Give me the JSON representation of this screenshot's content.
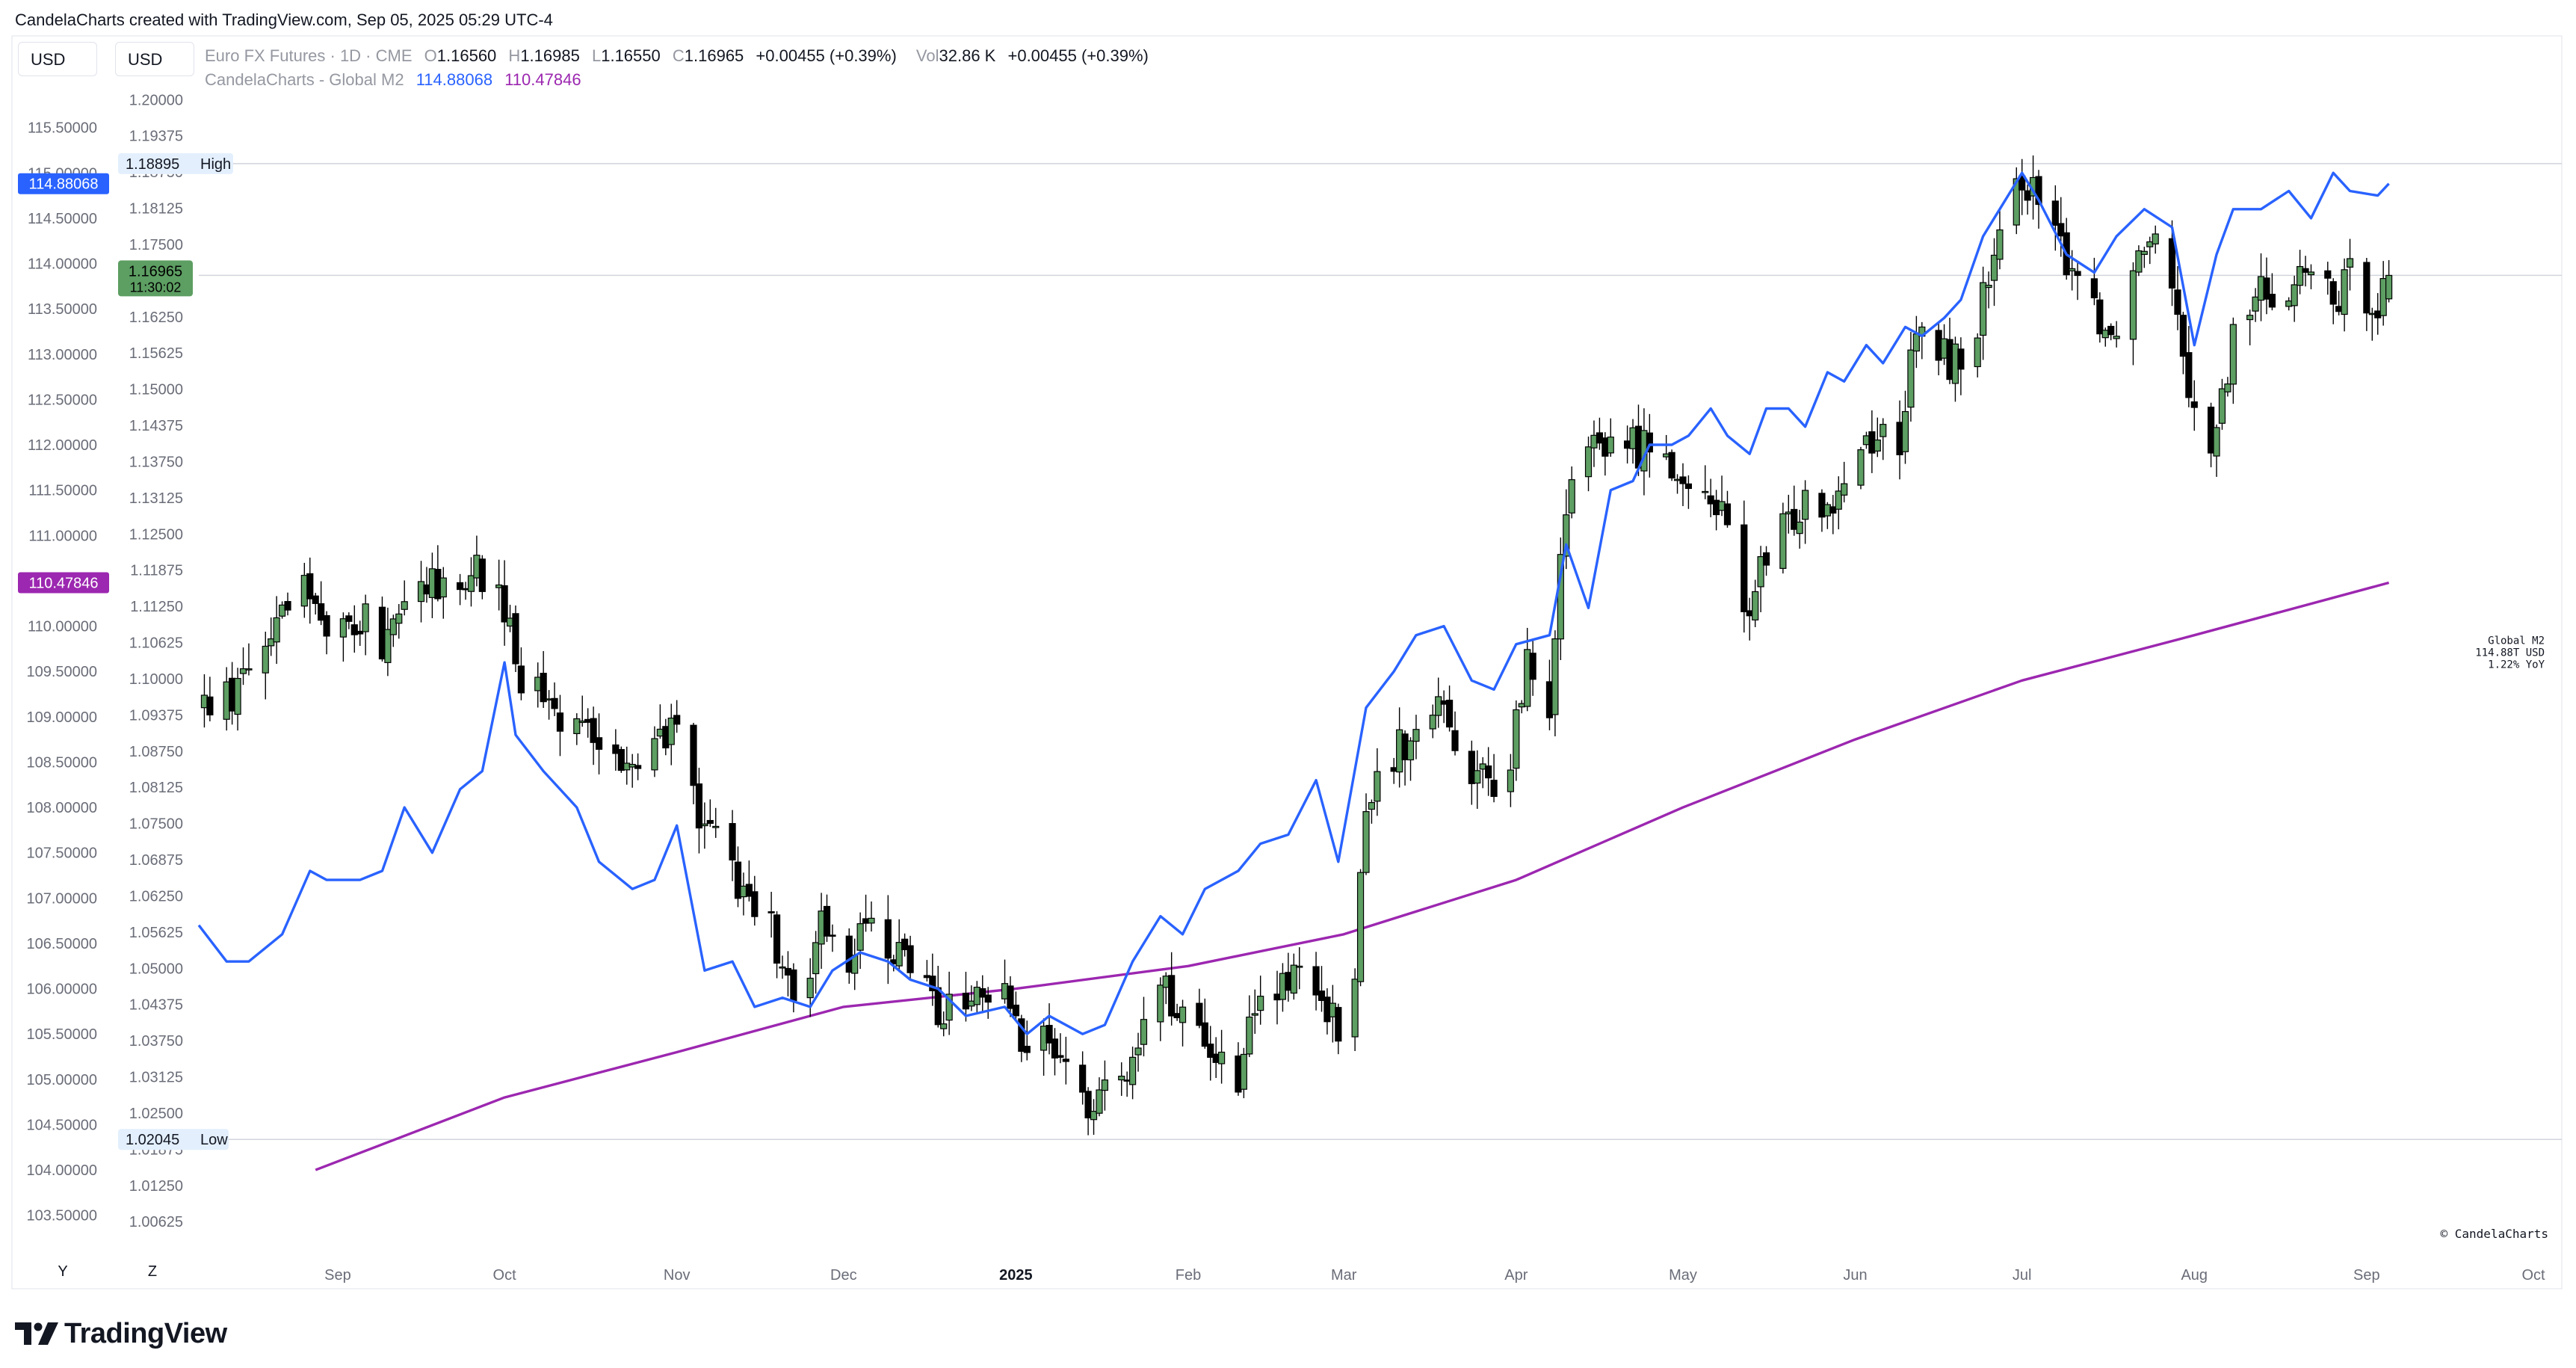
{
  "header": {
    "created_text": "CandelaCharts created with TradingView.com, Sep 05, 2025 05:29 UTC-4"
  },
  "scale_buttons": {
    "left": "USD",
    "right": "USD"
  },
  "legend": {
    "symbol": "Euro FX Futures · 1D · CME",
    "o_label": "O",
    "o_value": "1.16560",
    "h_label": "H",
    "h_value": "1.16985",
    "l_label": "L",
    "l_value": "1.16550",
    "c_label": "C",
    "c_value": "1.16965",
    "change": "+0.00455 (+0.39%)",
    "vol_label": "Vol",
    "vol_value": "32.86 K",
    "vol_change": "+0.00455 (+0.39%)",
    "indicator": "CandelaCharts - Global M2",
    "ind_value_1": "114.88068",
    "ind_value_2": "110.47846"
  },
  "labels": {
    "high_price": "1.18895",
    "high_text": "High",
    "low_price": "1.02045",
    "low_text": "Low",
    "last_price": "1.16965",
    "countdown": "11:30:02",
    "m2_left_badge": "114.88068",
    "yoy_left_badge": "110.47846",
    "info_line1": "Global M2",
    "info_line2": "114.88T USD",
    "info_line3": "1.22% YoY",
    "copyright": "© CandelaCharts"
  },
  "range_buttons": [
    "Y",
    "Z"
  ],
  "brand": "TradingView",
  "colors": {
    "up": "#5d9e62",
    "down": "#000000",
    "m2_line": "#2962ff",
    "yoy_line": "#9c27b0",
    "price_badge": "#5d9e62"
  },
  "chart_data": {
    "type": "candlestick",
    "title": "Euro FX Futures · 1D · CME",
    "x_range": [
      "2024-08-07",
      "2025-10-01"
    ],
    "x_ticks": [
      "Sep",
      "Oct",
      "Nov",
      "Dec",
      "2025",
      "Feb",
      "Mar",
      "Apr",
      "May",
      "Jun",
      "Jul",
      "Aug",
      "Sep",
      "Oct"
    ],
    "left_axis": {
      "unit": "USD",
      "range": [
        103.3,
        116.0
      ],
      "ticks": [
        "103.50000",
        "104.00000",
        "104.50000",
        "105.00000",
        "105.50000",
        "106.00000",
        "106.50000",
        "107.00000",
        "107.50000",
        "108.00000",
        "108.50000",
        "109.00000",
        "109.50000",
        "110.00000",
        "110.50000",
        "111.00000",
        "111.50000",
        "112.00000",
        "112.50000",
        "113.00000",
        "113.50000",
        "114.00000",
        "114.50000",
        "115.00000",
        "115.50000"
      ]
    },
    "right_axis": {
      "unit": "USD",
      "range": [
        1.00421,
        1.20301
      ],
      "ticks": [
        "1.00625",
        "1.01250",
        "1.01875",
        "1.02500",
        "1.03125",
        "1.03750",
        "1.04375",
        "1.05000",
        "1.05625",
        "1.06250",
        "1.06875",
        "1.07500",
        "1.08125",
        "1.08750",
        "1.09375",
        "1.10000",
        "1.10625",
        "1.11250",
        "1.11875",
        "1.12500",
        "1.13125",
        "1.13750",
        "1.14375",
        "1.15000",
        "1.15625",
        "1.16250",
        "1.16875",
        "1.17500",
        "1.18125",
        "1.18750",
        "1.19375",
        "1.20000"
      ]
    },
    "ohlc_anchors": [
      [
        "2024-08-08",
        1.0955
      ],
      [
        "2024-08-15",
        1.0992
      ],
      [
        "2024-08-22",
        1.1145
      ],
      [
        "2024-08-26",
        1.1185
      ],
      [
        "2024-08-30",
        1.108
      ],
      [
        "2024-09-05",
        1.11
      ],
      [
        "2024-09-10",
        1.106
      ],
      [
        "2024-09-17",
        1.115
      ],
      [
        "2024-09-25",
        1.1195
      ],
      [
        "2024-09-30",
        1.116
      ],
      [
        "2024-10-04",
        1.1
      ],
      [
        "2024-10-10",
        1.095
      ],
      [
        "2024-10-16",
        1.0895
      ],
      [
        "2024-10-21",
        1.0855
      ],
      [
        "2024-10-25",
        1.0855
      ],
      [
        "2024-10-30",
        1.0885
      ],
      [
        "2024-11-01",
        1.0905
      ],
      [
        "2024-11-06",
        1.074
      ],
      [
        "2024-11-12",
        1.065
      ],
      [
        "2024-11-18",
        1.0585
      ],
      [
        "2024-11-22",
        1.043
      ],
      [
        "2024-11-27",
        1.0565
      ],
      [
        "2024-12-03",
        1.052
      ],
      [
        "2024-12-06",
        1.058
      ],
      [
        "2024-12-10",
        1.0545
      ],
      [
        "2024-12-13",
        1.05
      ],
      [
        "2024-12-18",
        1.0425
      ],
      [
        "2024-12-24",
        1.043
      ],
      [
        "2024-12-30",
        1.044
      ],
      [
        "2025-01-03",
        1.033
      ],
      [
        "2025-01-07",
        1.038
      ],
      [
        "2025-01-13",
        1.026
      ],
      [
        "2025-01-17",
        1.0315
      ],
      [
        "2025-01-22",
        1.033
      ],
      [
        "2025-01-27",
        1.05
      ],
      [
        "2025-01-31",
        1.04
      ],
      [
        "2025-02-04",
        1.037
      ],
      [
        "2025-02-10",
        1.032
      ],
      [
        "2025-02-14",
        1.047
      ],
      [
        "2025-02-19",
        1.048
      ],
      [
        "2025-02-24",
        1.048
      ],
      [
        "2025-02-28",
        1.039
      ],
      [
        "2025-03-03",
        1.05
      ],
      [
        "2025-03-05",
        1.08
      ],
      [
        "2025-03-10",
        1.087
      ],
      [
        "2025-03-14",
        1.091
      ],
      [
        "2025-03-18",
        1.096
      ],
      [
        "2025-03-21",
        1.0845
      ],
      [
        "2025-03-27",
        1.082
      ],
      [
        "2025-03-31",
        1.084
      ],
      [
        "2025-04-03",
        1.105
      ],
      [
        "2025-04-07",
        1.096
      ],
      [
        "2025-04-10",
        1.13
      ],
      [
        "2025-04-14",
        1.138
      ],
      [
        "2025-04-18",
        1.142
      ],
      [
        "2025-04-23",
        1.14
      ],
      [
        "2025-04-28",
        1.142
      ],
      [
        "2025-05-01",
        1.13
      ],
      [
        "2025-05-06",
        1.133
      ],
      [
        "2025-05-09",
        1.125
      ],
      [
        "2025-05-12",
        1.11
      ],
      [
        "2025-05-15",
        1.118
      ],
      [
        "2025-05-19",
        1.125
      ],
      [
        "2025-05-23",
        1.132
      ],
      [
        "2025-05-27",
        1.131
      ],
      [
        "2025-05-30",
        1.135
      ],
      [
        "2025-06-03",
        1.142
      ],
      [
        "2025-06-09",
        1.142
      ],
      [
        "2025-06-12",
        1.159
      ],
      [
        "2025-06-17",
        1.156
      ],
      [
        "2025-06-20",
        1.154
      ],
      [
        "2025-06-25",
        1.168
      ],
      [
        "2025-06-30",
        1.183
      ],
      [
        "2025-07-01",
        1.188
      ],
      [
        "2025-07-07",
        1.175
      ],
      [
        "2025-07-10",
        1.172
      ],
      [
        "2025-07-15",
        1.163
      ],
      [
        "2025-07-17",
        1.159
      ],
      [
        "2025-07-22",
        1.174
      ],
      [
        "2025-07-25",
        1.18
      ],
      [
        "2025-07-29",
        1.165
      ],
      [
        "2025-08-01",
        1.145
      ],
      [
        "2025-08-05",
        1.141
      ],
      [
        "2025-08-08",
        1.159
      ],
      [
        "2025-08-13",
        1.167
      ],
      [
        "2025-08-18",
        1.168
      ],
      [
        "2025-08-22",
        1.17
      ],
      [
        "2025-08-26",
        1.164
      ],
      [
        "2025-08-29",
        1.169
      ],
      [
        "2025-09-03",
        1.1655
      ],
      [
        "2025-09-05",
        1.1697
      ]
    ],
    "series": [
      {
        "name": "Global M2",
        "axis": "left",
        "points": [
          [
            "2024-08-07",
            106.7
          ],
          [
            "2024-08-12",
            106.3
          ],
          [
            "2024-08-16",
            106.3
          ],
          [
            "2024-08-22",
            106.6
          ],
          [
            "2024-08-27",
            107.3
          ],
          [
            "2024-08-30",
            107.2
          ],
          [
            "2024-09-05",
            107.2
          ],
          [
            "2024-09-09",
            107.3
          ],
          [
            "2024-09-13",
            108.0
          ],
          [
            "2024-09-18",
            107.5
          ],
          [
            "2024-09-23",
            108.2
          ],
          [
            "2024-09-27",
            108.4
          ],
          [
            "2024-10-01",
            109.6
          ],
          [
            "2024-10-03",
            108.8
          ],
          [
            "2024-10-08",
            108.4
          ],
          [
            "2024-10-14",
            108.0
          ],
          [
            "2024-10-18",
            107.4
          ],
          [
            "2024-10-24",
            107.1
          ],
          [
            "2024-10-28",
            107.2
          ],
          [
            "2024-11-01",
            107.8
          ],
          [
            "2024-11-06",
            106.2
          ],
          [
            "2024-11-11",
            106.3
          ],
          [
            "2024-11-15",
            105.8
          ],
          [
            "2024-11-20",
            105.9
          ],
          [
            "2024-11-25",
            105.8
          ],
          [
            "2024-11-29",
            106.2
          ],
          [
            "2024-12-04",
            106.4
          ],
          [
            "2024-12-09",
            106.3
          ],
          [
            "2024-12-13",
            106.1
          ],
          [
            "2024-12-18",
            106.0
          ],
          [
            "2024-12-23",
            105.7
          ],
          [
            "2024-12-30",
            105.8
          ],
          [
            "2025-01-03",
            105.5
          ],
          [
            "2025-01-07",
            105.7
          ],
          [
            "2025-01-13",
            105.5
          ],
          [
            "2025-01-17",
            105.6
          ],
          [
            "2025-01-22",
            106.3
          ],
          [
            "2025-01-27",
            106.8
          ],
          [
            "2025-01-31",
            106.6
          ],
          [
            "2025-02-04",
            107.1
          ],
          [
            "2025-02-10",
            107.3
          ],
          [
            "2025-02-14",
            107.6
          ],
          [
            "2025-02-19",
            107.7
          ],
          [
            "2025-02-24",
            108.3
          ],
          [
            "2025-02-28",
            107.4
          ],
          [
            "2025-03-05",
            109.1
          ],
          [
            "2025-03-10",
            109.5
          ],
          [
            "2025-03-14",
            109.9
          ],
          [
            "2025-03-19",
            110.0
          ],
          [
            "2025-03-24",
            109.4
          ],
          [
            "2025-03-28",
            109.3
          ],
          [
            "2025-04-01",
            109.8
          ],
          [
            "2025-04-07",
            109.9
          ],
          [
            "2025-04-10",
            110.9
          ],
          [
            "2025-04-14",
            110.2
          ],
          [
            "2025-04-18",
            111.5
          ],
          [
            "2025-04-22",
            111.6
          ],
          [
            "2025-04-25",
            112.0
          ],
          [
            "2025-04-29",
            112.0
          ],
          [
            "2025-05-02",
            112.1
          ],
          [
            "2025-05-06",
            112.4
          ],
          [
            "2025-05-09",
            112.1
          ],
          [
            "2025-05-13",
            111.9
          ],
          [
            "2025-05-16",
            112.4
          ],
          [
            "2025-05-20",
            112.4
          ],
          [
            "2025-05-23",
            112.2
          ],
          [
            "2025-05-27",
            112.8
          ],
          [
            "2025-05-30",
            112.7
          ],
          [
            "2025-06-03",
            113.1
          ],
          [
            "2025-06-06",
            112.9
          ],
          [
            "2025-06-10",
            113.3
          ],
          [
            "2025-06-13",
            113.2
          ],
          [
            "2025-06-17",
            113.4
          ],
          [
            "2025-06-20",
            113.6
          ],
          [
            "2025-06-24",
            114.3
          ],
          [
            "2025-06-27",
            114.6
          ],
          [
            "2025-07-01",
            115.0
          ],
          [
            "2025-07-04",
            114.7
          ],
          [
            "2025-07-09",
            114.1
          ],
          [
            "2025-07-14",
            113.9
          ],
          [
            "2025-07-18",
            114.3
          ],
          [
            "2025-07-23",
            114.6
          ],
          [
            "2025-07-28",
            114.4
          ],
          [
            "2025-08-01",
            113.1
          ],
          [
            "2025-08-05",
            114.1
          ],
          [
            "2025-08-08",
            114.6
          ],
          [
            "2025-08-13",
            114.6
          ],
          [
            "2025-08-18",
            114.8
          ],
          [
            "2025-08-22",
            114.5
          ],
          [
            "2025-08-26",
            115.0
          ],
          [
            "2025-08-29",
            114.8
          ],
          [
            "2025-09-03",
            114.75
          ],
          [
            "2025-09-05",
            114.88068
          ]
        ]
      },
      {
        "name": "YoY",
        "axis": "left",
        "points": [
          [
            "2024-08-28",
            104.0
          ],
          [
            "2024-10-01",
            104.8
          ],
          [
            "2024-11-01",
            105.3
          ],
          [
            "2024-12-01",
            105.8
          ],
          [
            "2025-01-01",
            106.0
          ],
          [
            "2025-02-01",
            106.25
          ],
          [
            "2025-03-01",
            106.6
          ],
          [
            "2025-04-01",
            107.2
          ],
          [
            "2025-05-01",
            108.0
          ],
          [
            "2025-06-01",
            108.75
          ],
          [
            "2025-07-01",
            109.4
          ],
          [
            "2025-08-01",
            109.9
          ],
          [
            "2025-09-05",
            110.47846
          ]
        ]
      }
    ],
    "annotations": [
      "High 1.18895",
      "Low 1.02045",
      "Global M2 114.88T USD 1.22% YoY"
    ]
  }
}
